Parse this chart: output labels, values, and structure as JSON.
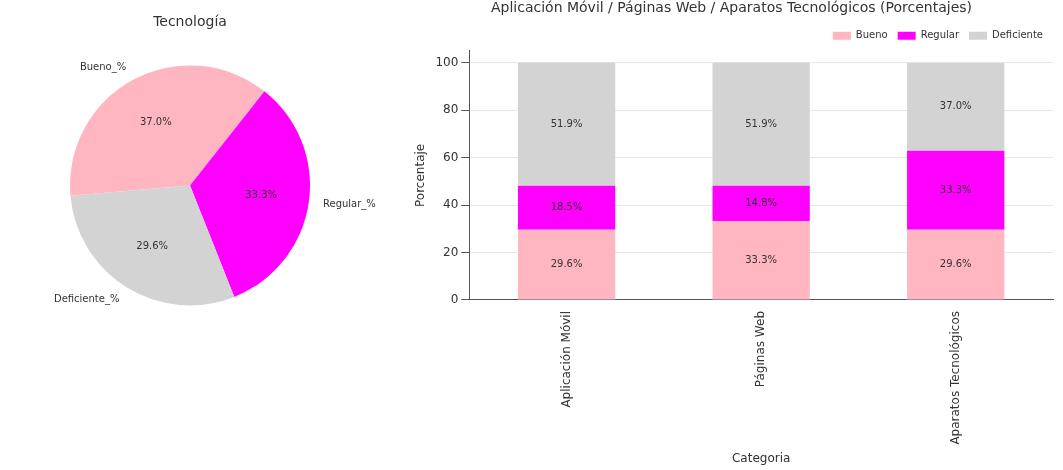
{
  "chart_data": [
    {
      "type": "pie",
      "title": "Tecnología",
      "categories": [
        "Bueno_%",
        "Regular_%",
        "Deficiente_%"
      ],
      "values": [
        37.0,
        33.3,
        29.6
      ],
      "colors": [
        "#ffb6c1",
        "#ff00ff",
        "#d3d3d3"
      ],
      "value_labels": [
        "37.0%",
        "33.3%",
        "29.6%"
      ],
      "legend": false
    },
    {
      "type": "bar",
      "title": "Aplicación Móvil / Páginas Web / Aparatos Tecnológicos (Porcentajes)",
      "xlabel": "Categoria",
      "ylabel": "Porcentaje",
      "categories": [
        "Aplicación Móvil",
        "Páginas Web",
        "Aparatos Tecnológicos"
      ],
      "stacked": true,
      "ylim": [
        0,
        105
      ],
      "yticks": [
        0,
        20,
        40,
        60,
        80,
        100
      ],
      "grid": "y",
      "legend": "top right",
      "series": [
        {
          "name": "Bueno",
          "color": "#ffb6c1",
          "values": [
            29.6,
            33.3,
            29.6
          ],
          "value_labels": [
            "29.6%",
            "33.3%",
            "29.6%"
          ]
        },
        {
          "name": "Regular",
          "color": "#ff00ff",
          "values": [
            18.5,
            14.8,
            33.3
          ],
          "value_labels": [
            "18.5%",
            "14.8%",
            "33.3%"
          ]
        },
        {
          "name": "Deficiente",
          "color": "#d3d3d3",
          "values": [
            51.9,
            51.9,
            37.0
          ],
          "value_labels": [
            "51.9%",
            "51.9%",
            "37.0%"
          ]
        }
      ]
    }
  ]
}
